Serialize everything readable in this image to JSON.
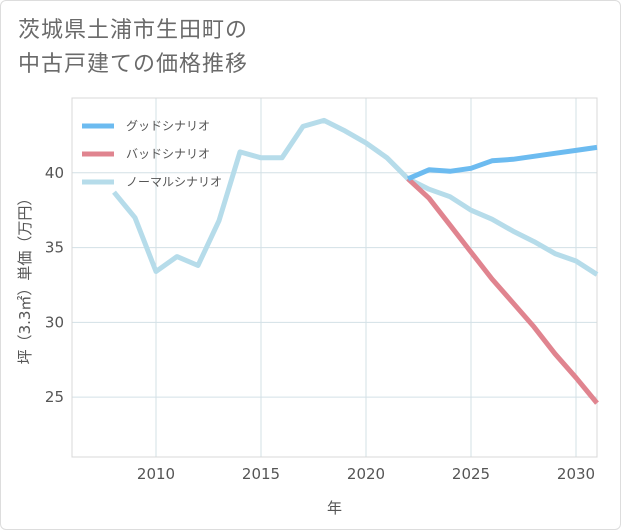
{
  "title": {
    "line1": "茨城県土浦市生田町の",
    "line2": "中古戸建ての価格推移"
  },
  "chart_data": {
    "type": "line",
    "xlabel": "年",
    "ylabel": "坪（3.3㎡）単価（万円）",
    "xlim": [
      2006,
      2031
    ],
    "ylim": [
      21,
      45
    ],
    "xticks": [
      2010,
      2015,
      2020,
      2025,
      2030
    ],
    "yticks": [
      25,
      30,
      35,
      40
    ],
    "xtick_labels": [
      "2010",
      "2015",
      "2020",
      "2025",
      "2030"
    ],
    "ytick_labels": [
      "25",
      "30",
      "35",
      "40"
    ],
    "legend_position": "top-left",
    "series": [
      {
        "name": "グッドシナリオ",
        "color": "#6cbbf0",
        "x": [
          2022,
          2023,
          2024,
          2025,
          2026,
          2027,
          2028,
          2029,
          2030,
          2031
        ],
        "y": [
          39.6,
          40.2,
          40.1,
          40.3,
          40.8,
          40.9,
          41.1,
          41.3,
          41.5,
          41.7
        ]
      },
      {
        "name": "バッドシナリオ",
        "color": "#e0848f",
        "x": [
          2022,
          2023,
          2024,
          2025,
          2026,
          2027,
          2028,
          2029,
          2030,
          2031
        ],
        "y": [
          39.6,
          38.3,
          36.5,
          34.7,
          32.9,
          31.3,
          29.7,
          27.9,
          26.3,
          24.6
        ]
      },
      {
        "name": "ノーマルシナリオ",
        "color": "#b6dcea",
        "x": [
          2008,
          2009,
          2010,
          2011,
          2012,
          2013,
          2014,
          2015,
          2016,
          2017,
          2018,
          2019,
          2020,
          2021,
          2022,
          2023,
          2024,
          2025,
          2026,
          2027,
          2028,
          2029,
          2030,
          2031
        ],
        "y": [
          38.7,
          37.0,
          33.4,
          34.4,
          33.8,
          36.8,
          41.4,
          41.0,
          41.0,
          43.1,
          43.5,
          42.8,
          42.0,
          41.0,
          39.6,
          38.9,
          38.4,
          37.5,
          36.9,
          36.1,
          35.4,
          34.6,
          34.1,
          33.2
        ]
      }
    ]
  }
}
